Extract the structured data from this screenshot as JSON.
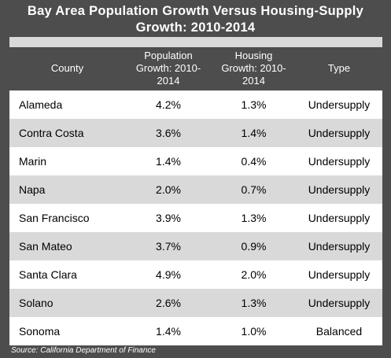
{
  "chart_data": {
    "type": "table",
    "title": "Bay Area Population Growth Versus Housing-Supply Growth: 2010-2014",
    "title_lines": [
      "Bay Area Population Growth Versus Housing-Supply",
      "Growth: 2010-2014"
    ],
    "columns": [
      [
        "County"
      ],
      [
        "Population",
        "Growth: 2010-",
        "2014"
      ],
      [
        "Housing",
        "Growth: 2010-",
        "2014"
      ],
      [
        "Type"
      ]
    ],
    "rows": [
      [
        "Alameda",
        "4.2%",
        "1.3%",
        "Undersupply"
      ],
      [
        "Contra Costa",
        "3.6%",
        "1.4%",
        "Undersupply"
      ],
      [
        "Marin",
        "1.4%",
        "0.4%",
        "Undersupply"
      ],
      [
        "Napa",
        "2.0%",
        "0.7%",
        "Undersupply"
      ],
      [
        "San Francisco",
        "3.9%",
        "1.3%",
        "Undersupply"
      ],
      [
        "San Mateo",
        "3.7%",
        "0.9%",
        "Undersupply"
      ],
      [
        "Santa Clara",
        "4.9%",
        "2.0%",
        "Undersupply"
      ],
      [
        "Solano",
        "2.6%",
        "1.3%",
        "Undersupply"
      ],
      [
        "Sonoma",
        "1.4%",
        "1.0%",
        "Balanced"
      ]
    ],
    "source": "Source: California Department of Finance"
  },
  "colors": {
    "background": "#4d4d4d",
    "band": "#d9d9d9",
    "row": "#ffffff"
  }
}
